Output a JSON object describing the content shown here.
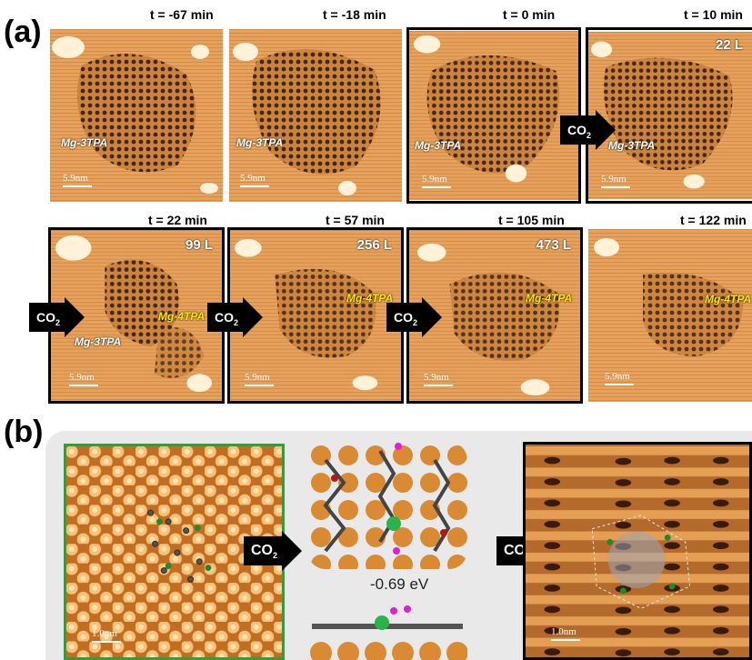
{
  "labels": {
    "a": "(a)",
    "b": "(b)"
  },
  "row1": [
    {
      "time": "t = -67 min",
      "dose": "",
      "mg3": "Mg-3TPA",
      "mg4": "",
      "scale": "5.9nm"
    },
    {
      "time": "t = -18 min",
      "dose": "",
      "mg3": "Mg-3TPA",
      "mg4": "",
      "scale": "5.9nm"
    },
    {
      "time": "t = 0 min",
      "dose": "",
      "mg3": "Mg-3TPA",
      "mg4": "",
      "scale": "5.9nm"
    },
    {
      "time": "t = 10 min",
      "dose": "22 L",
      "mg3": "Mg-3TPA",
      "mg4": "",
      "scale": "5.9nm"
    }
  ],
  "row2": [
    {
      "time": "t = 22 min",
      "dose": "99 L",
      "mg3": "Mg-3TPA",
      "mg4": "Mg-4TPA",
      "scale": "5.9nm"
    },
    {
      "time": "t = 57 min",
      "dose": "256 L",
      "mg3": "",
      "mg4": "Mg-4TPA",
      "scale": "5.9nm"
    },
    {
      "time": "t = 105 min",
      "dose": "473 L",
      "mg3": "",
      "mg4": "Mg-4TPA",
      "scale": "5.9nm"
    },
    {
      "time": "t = 122 min",
      "dose": "",
      "mg3": "",
      "mg4": "Mg-4TPA",
      "scale": "5.9nm"
    }
  ],
  "co2": {
    "text": "CO",
    "sub": "2"
  },
  "panel_b": {
    "left_scale": "1.0nm",
    "right_scale": "1.0nm",
    "energy": "-0.69 eV"
  },
  "colors": {
    "stm_light": "#f0b46a",
    "stm_mid": "#c9803f",
    "stm_dark": "#5a2a10",
    "green_frame": "#2e9e3e"
  }
}
